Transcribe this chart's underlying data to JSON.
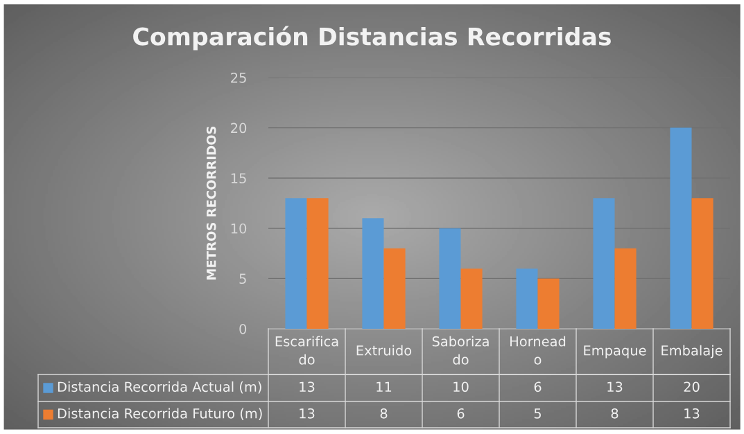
{
  "chart_data": {
    "type": "bar",
    "title": "Comparación Distancias Recorridas",
    "ylabel": "METROS RECORRIDOS",
    "categories": [
      "Escarifica\ndo",
      "Extruido",
      "Saboriza\ndo",
      "Hornead\no",
      "Empaque",
      "Embalaje"
    ],
    "series": [
      {
        "name": "Distancia Recorrida Actual (m)",
        "color": "#5b9bd5",
        "values": [
          13,
          11,
          10,
          6,
          13,
          20
        ]
      },
      {
        "name": "Distancia Recorrida Futuro (m)",
        "color": "#ed7d31",
        "values": [
          13,
          8,
          6,
          5,
          8,
          13
        ]
      }
    ],
    "ylim": [
      0,
      25
    ],
    "yticks": [
      0,
      5,
      10,
      15,
      20,
      25
    ],
    "grid": "y",
    "data_labels": true,
    "legend": "bottom"
  }
}
